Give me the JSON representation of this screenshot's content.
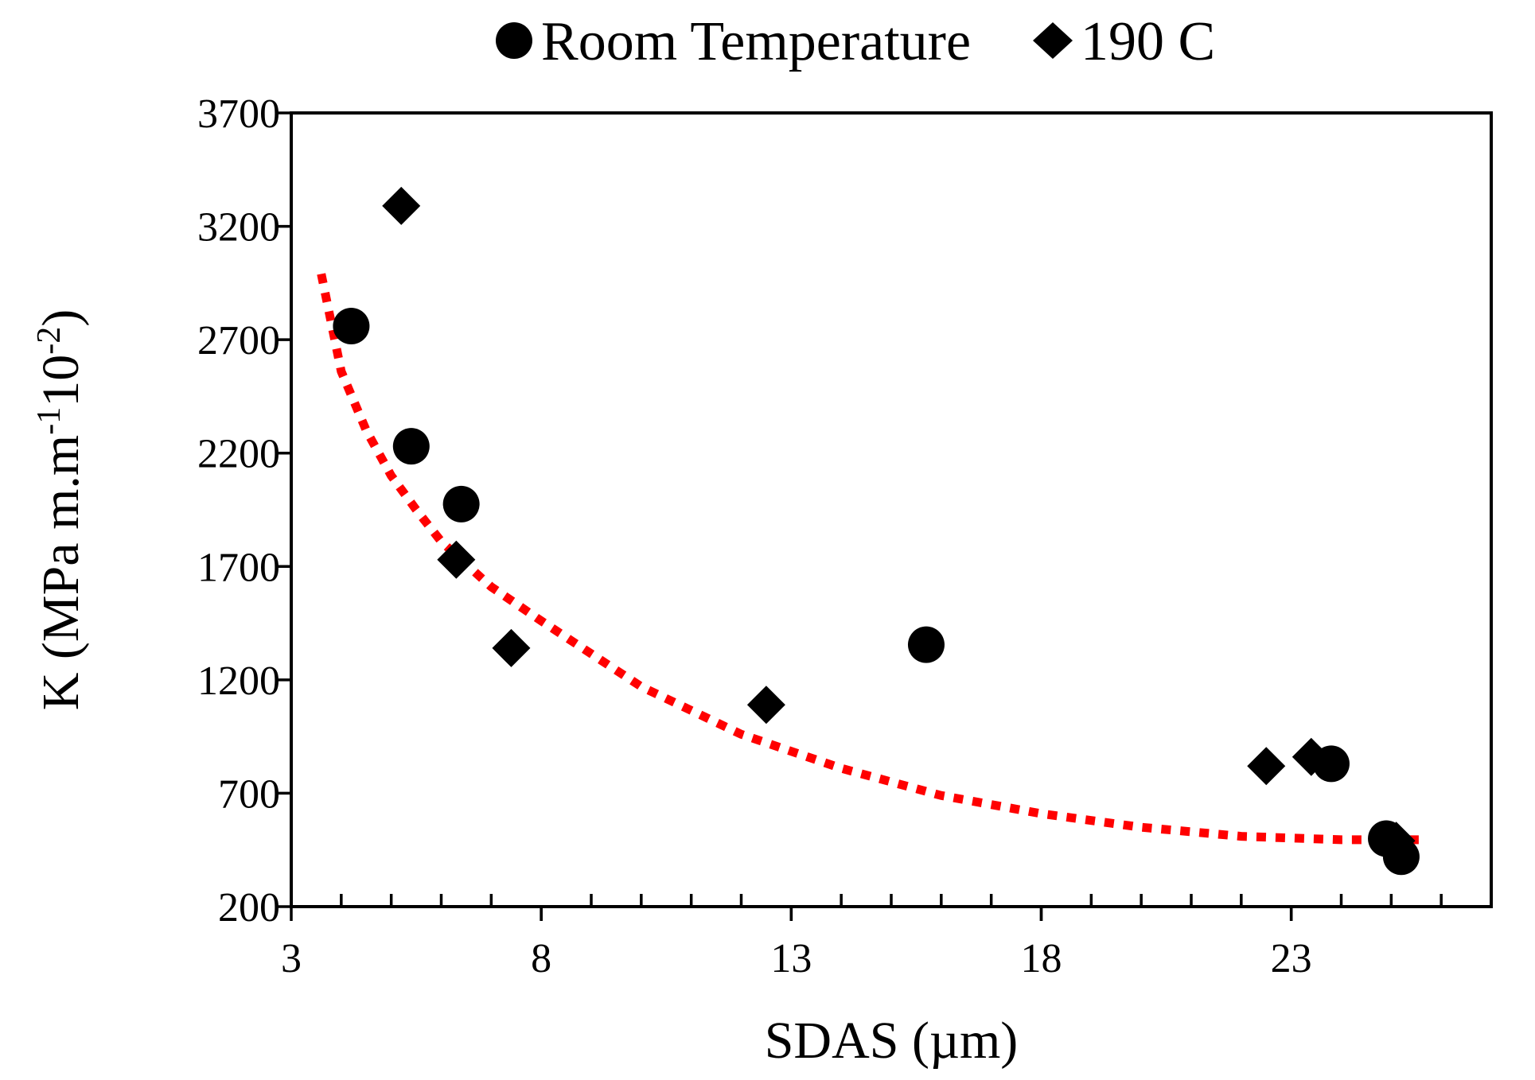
{
  "chart_data": {
    "type": "scatter",
    "title": "",
    "xlabel": "SDAS (µm)",
    "ylabel": "K (MPa m.m⁻¹10⁻²)",
    "xlim": [
      3,
      27
    ],
    "ylim": [
      200,
      3700
    ],
    "x_ticks": [
      "3",
      "8",
      "13",
      "18",
      "23"
    ],
    "y_ticks": [
      "200",
      "700",
      "1200",
      "1700",
      "2200",
      "2700",
      "3200",
      "3700"
    ],
    "x_tick_values": [
      3,
      8,
      13,
      18,
      23
    ],
    "y_tick_values": [
      200,
      700,
      1200,
      1700,
      2200,
      2700,
      3200,
      3700
    ],
    "x_minor_step": 1,
    "legend_position": "top-center",
    "grid": false,
    "series": [
      {
        "name": "Room Temperature",
        "marker": "circle",
        "color": "#000000",
        "points": [
          {
            "x": 4.2,
            "y": 2760
          },
          {
            "x": 5.4,
            "y": 2230
          },
          {
            "x": 6.4,
            "y": 1975
          },
          {
            "x": 15.7,
            "y": 1355
          },
          {
            "x": 23.8,
            "y": 830
          },
          {
            "x": 24.9,
            "y": 500
          },
          {
            "x": 25.2,
            "y": 420
          }
        ]
      },
      {
        "name": "190 C",
        "marker": "diamond",
        "color": "#000000",
        "points": [
          {
            "x": 5.2,
            "y": 3290
          },
          {
            "x": 6.3,
            "y": 1730
          },
          {
            "x": 7.4,
            "y": 1340
          },
          {
            "x": 12.5,
            "y": 1090
          },
          {
            "x": 22.5,
            "y": 820
          },
          {
            "x": 23.4,
            "y": 860
          },
          {
            "x": 25.1,
            "y": 490
          }
        ]
      }
    ],
    "trendline": {
      "style": "dotted",
      "color": "#ff0000",
      "points": [
        {
          "x": 3.6,
          "y": 2990
        },
        {
          "x": 4.0,
          "y": 2560
        },
        {
          "x": 4.5,
          "y": 2300
        },
        {
          "x": 5.0,
          "y": 2100
        },
        {
          "x": 5.5,
          "y": 1950
        },
        {
          "x": 6.0,
          "y": 1810
        },
        {
          "x": 7.0,
          "y": 1610
        },
        {
          "x": 8.0,
          "y": 1460
        },
        {
          "x": 10.0,
          "y": 1170
        },
        {
          "x": 12.0,
          "y": 960
        },
        {
          "x": 14.0,
          "y": 810
        },
        {
          "x": 16.0,
          "y": 690
        },
        {
          "x": 18.0,
          "y": 610
        },
        {
          "x": 20.0,
          "y": 550
        },
        {
          "x": 22.0,
          "y": 510
        },
        {
          "x": 24.0,
          "y": 495
        },
        {
          "x": 25.7,
          "y": 495
        }
      ]
    }
  }
}
